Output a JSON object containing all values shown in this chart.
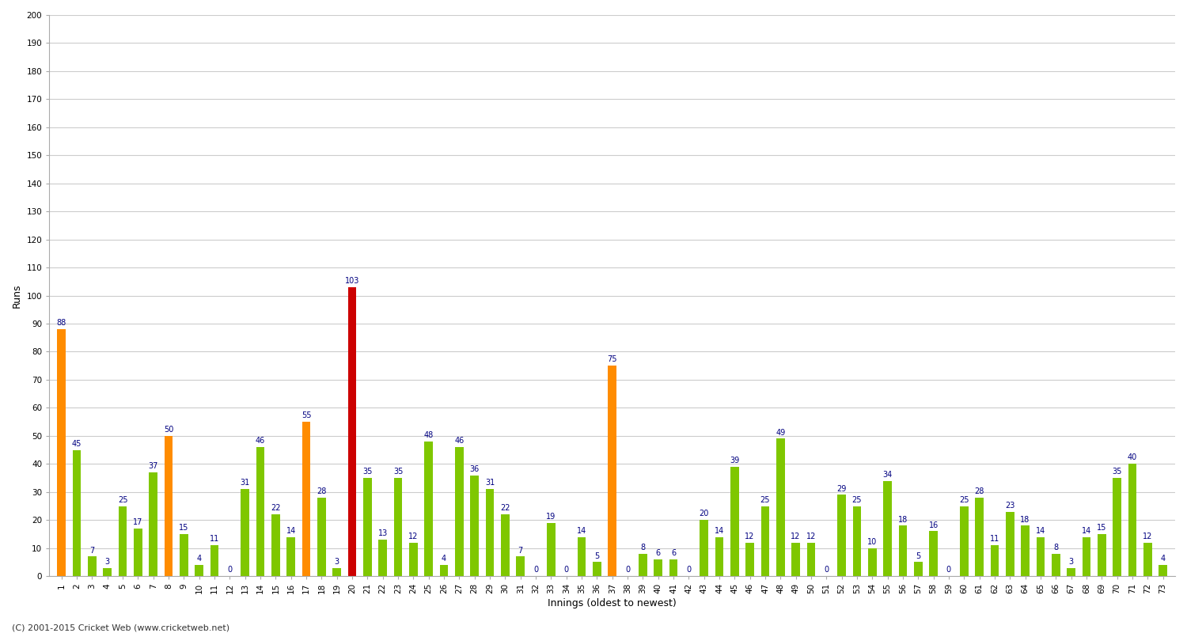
{
  "title": "",
  "xlabel": "Innings (oldest to newest)",
  "ylabel": "Runs",
  "ylim": [
    0,
    200
  ],
  "yticks": [
    0,
    10,
    20,
    30,
    40,
    50,
    60,
    70,
    80,
    90,
    100,
    110,
    120,
    130,
    140,
    150,
    160,
    170,
    180,
    190,
    200
  ],
  "categories": [
    "1",
    "2",
    "3",
    "4",
    "5",
    "6",
    "7",
    "8",
    "9",
    "10",
    "11",
    "12",
    "13",
    "14",
    "15",
    "16",
    "17",
    "18",
    "19",
    "20",
    "21",
    "22",
    "23",
    "24",
    "25",
    "26",
    "27",
    "28",
    "29",
    "30",
    "31",
    "32",
    "33",
    "34",
    "35",
    "36",
    "37",
    "38",
    "39",
    "40",
    "41",
    "42",
    "43",
    "44",
    "45",
    "46",
    "47",
    "48",
    "49",
    "50",
    "51",
    "52",
    "53",
    "54",
    "55",
    "56",
    "57",
    "58",
    "59",
    "60",
    "61",
    "62",
    "63",
    "64",
    "65",
    "66",
    "67",
    "68",
    "69",
    "70",
    "71",
    "72",
    "73"
  ],
  "values": [
    88,
    45,
    7,
    3,
    25,
    17,
    37,
    50,
    15,
    4,
    11,
    0,
    31,
    46,
    22,
    14,
    55,
    28,
    3,
    103,
    35,
    13,
    35,
    12,
    48,
    4,
    46,
    36,
    31,
    22,
    7,
    0,
    19,
    0,
    14,
    5,
    75,
    0,
    8,
    6,
    6,
    0,
    20,
    14,
    39,
    12,
    25,
    49,
    12,
    12,
    0,
    29,
    25,
    10,
    34,
    18,
    5,
    16,
    0,
    25,
    28,
    11,
    23,
    18,
    14,
    8,
    3,
    14,
    15,
    35,
    40,
    12,
    4
  ],
  "colors": [
    "#ff8c00",
    "#7fc700",
    "#7fc700",
    "#7fc700",
    "#7fc700",
    "#7fc700",
    "#7fc700",
    "#ff8c00",
    "#7fc700",
    "#7fc700",
    "#7fc700",
    "#7fc700",
    "#7fc700",
    "#7fc700",
    "#7fc700",
    "#7fc700",
    "#ff8c00",
    "#7fc700",
    "#7fc700",
    "#cc0000",
    "#7fc700",
    "#7fc700",
    "#7fc700",
    "#7fc700",
    "#7fc700",
    "#7fc700",
    "#7fc700",
    "#7fc700",
    "#7fc700",
    "#7fc700",
    "#7fc700",
    "#7fc700",
    "#7fc700",
    "#7fc700",
    "#7fc700",
    "#7fc700",
    "#ff8c00",
    "#7fc700",
    "#7fc700",
    "#7fc700",
    "#7fc700",
    "#7fc700",
    "#7fc700",
    "#7fc700",
    "#7fc700",
    "#7fc700",
    "#7fc700",
    "#7fc700",
    "#7fc700",
    "#7fc700",
    "#7fc700",
    "#7fc700",
    "#7fc700",
    "#7fc700",
    "#7fc700",
    "#7fc700",
    "#7fc700",
    "#7fc700",
    "#7fc700",
    "#7fc700",
    "#7fc700",
    "#7fc700",
    "#7fc700",
    "#7fc700",
    "#7fc700",
    "#7fc700",
    "#7fc700",
    "#7fc700",
    "#7fc700",
    "#7fc700",
    "#7fc700",
    "#7fc700",
    "#7fc700"
  ],
  "bg_color": "#ffffff",
  "grid_color": "#cccccc",
  "label_color": "#000080",
  "label_fontsize": 7,
  "axis_label_fontsize": 9,
  "tick_fontsize": 7.5,
  "footer": "(C) 2001-2015 Cricket Web (www.cricketweb.net)"
}
